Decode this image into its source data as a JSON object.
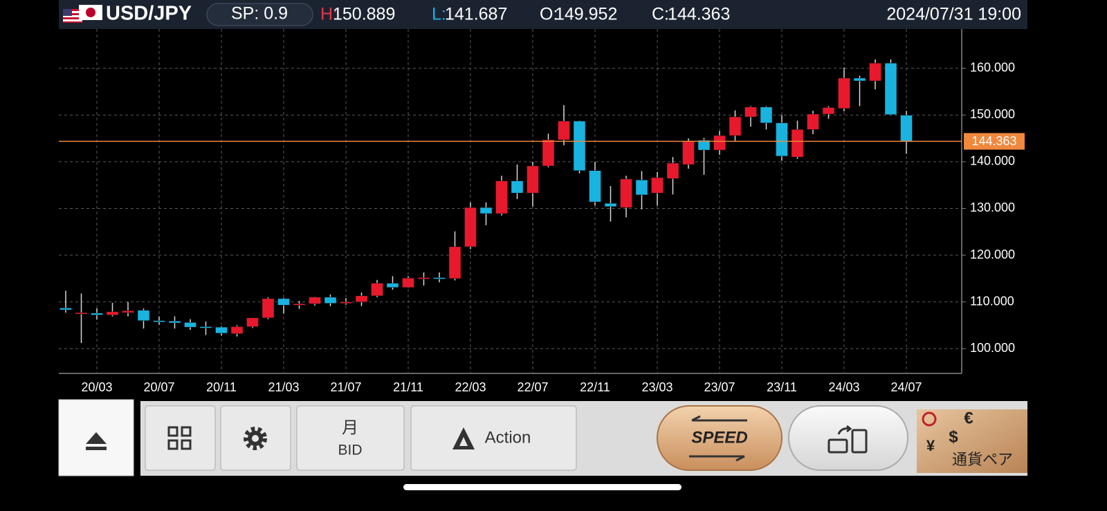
{
  "header": {
    "pair": "USD/JPY",
    "spread": "SP: 0.9",
    "high_label": "H:",
    "low_label": "L:",
    "open_label": "O:",
    "close_label": "C:",
    "datetime": "2024/07/31 19:00"
  },
  "chart_data": {
    "type": "candlestick",
    "up_color": "#e8192c",
    "down_color": "#19b3e0",
    "grid": true,
    "price_line_color": "#f0883e",
    "categories": [
      null,
      null,
      "20/03",
      null,
      null,
      null,
      "20/07",
      null,
      null,
      null,
      "20/11",
      null,
      null,
      null,
      "21/03",
      null,
      null,
      null,
      "21/07",
      null,
      null,
      null,
      "21/11",
      null,
      null,
      null,
      "22/03",
      null,
      null,
      null,
      "22/07",
      null,
      null,
      null,
      "22/11",
      null,
      null,
      null,
      "23/03",
      null,
      null,
      null,
      "23/07",
      null,
      null,
      null,
      "23/11",
      null,
      null,
      null,
      "24/03",
      null,
      null,
      null,
      "24/07"
    ],
    "open": [
      108.7,
      107.5,
      107.6,
      107.2,
      107.7,
      108.2,
      106.0,
      105.9,
      105.6,
      104.7,
      104.6,
      103.2,
      104.7,
      106.6,
      110.7,
      109.3,
      109.6,
      111.0,
      109.7,
      110.0,
      111.3,
      114.0,
      113.1,
      115.1,
      115.2,
      115.0,
      121.8,
      130.2,
      128.9,
      135.9,
      133.3,
      139.1,
      144.7,
      148.7,
      138.1,
      131.1,
      130.2,
      136.1,
      133.3,
      136.4,
      139.4,
      144.6,
      142.5,
      145.6,
      149.6,
      151.7,
      148.3,
      141.0,
      146.9,
      150.2,
      151.4,
      157.9,
      157.3,
      161.1,
      149.952
    ],
    "high": [
      112.4,
      111.8,
      108.6,
      109.8,
      110.0,
      108.6,
      106.9,
      106.9,
      106.3,
      105.8,
      104.8,
      105.0,
      106.6,
      111.0,
      110.9,
      110.2,
      111.1,
      111.6,
      110.8,
      112.0,
      114.7,
      115.5,
      115.5,
      116.3,
      116.3,
      125.1,
      131.3,
      131.3,
      137.0,
      139.4,
      140.0,
      146.0,
      152.1,
      148.8,
      140.0,
      134.8,
      137.0,
      138.0,
      137.8,
      141.0,
      145.0,
      145.1,
      146.6,
      151.0,
      151.9,
      151.9,
      150.0,
      148.8,
      150.9,
      151.9,
      160.2,
      158.4,
      161.9,
      161.9,
      150.889
    ],
    "low": [
      107.7,
      101.2,
      106.2,
      106.9,
      106.9,
      104.3,
      105.1,
      104.3,
      104.0,
      102.9,
      102.8,
      102.6,
      104.4,
      106.3,
      107.5,
      108.5,
      109.2,
      109.1,
      109.4,
      109.1,
      111.0,
      112.6,
      113.0,
      113.5,
      114.2,
      114.6,
      121.3,
      126.4,
      128.5,
      132.0,
      130.4,
      138.8,
      143.5,
      137.5,
      130.6,
      127.2,
      128.1,
      129.8,
      130.6,
      133.0,
      138.5,
      137.2,
      141.5,
      144.5,
      147.5,
      146.9,
      140.2,
      140.6,
      145.9,
      149.2,
      150.8,
      151.9,
      155.5,
      150.0,
      141.687
    ],
    "close": [
      108.3,
      107.7,
      107.2,
      107.9,
      108.1,
      106.0,
      105.9,
      105.5,
      104.6,
      104.5,
      103.3,
      104.7,
      106.6,
      110.7,
      109.3,
      109.6,
      111.0,
      109.7,
      110.0,
      111.3,
      114.0,
      113.1,
      115.1,
      115.2,
      115.0,
      121.8,
      130.2,
      128.9,
      135.9,
      133.3,
      139.1,
      144.7,
      148.7,
      138.1,
      131.4,
      130.4,
      136.3,
      132.9,
      136.6,
      139.7,
      144.3,
      142.5,
      145.6,
      149.6,
      151.7,
      148.3,
      141.2,
      146.9,
      150.2,
      151.6,
      157.9,
      157.3,
      161.1,
      150.1,
      144.363
    ],
    "ylim": [
      94.7,
      168.4
    ],
    "yticks": [
      {
        "value": 100,
        "label": "100.000"
      },
      {
        "value": 110,
        "label": "110.000"
      },
      {
        "value": 120,
        "label": "120.000"
      },
      {
        "value": 130,
        "label": "130.000"
      },
      {
        "value": 140,
        "label": "140.000"
      },
      {
        "value": 150,
        "label": "150.000"
      },
      {
        "value": 160,
        "label": "160.000"
      }
    ]
  },
  "toolbar": {
    "period": "月",
    "price_type": "BID",
    "action": "Action",
    "speed": "SPEED",
    "pair_button": "通貨ペア",
    "currency_symbols": [
      "€",
      "$",
      "¥"
    ]
  }
}
